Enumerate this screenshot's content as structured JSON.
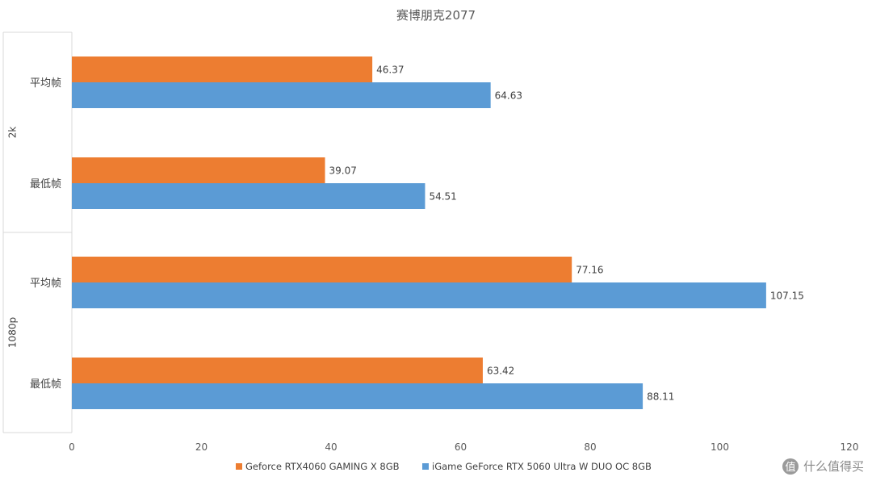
{
  "chart_data": {
    "type": "bar",
    "orientation": "horizontal",
    "title": "赛博朋克2077",
    "groups": [
      {
        "label": "2k",
        "categories": [
          "平均帧",
          "最低帧"
        ]
      },
      {
        "label": "1080p",
        "categories": [
          "平均帧",
          "最低帧"
        ]
      }
    ],
    "series": [
      {
        "name": "Geforce RTX4060 GAMING X 8GB",
        "color": "#ED7D31",
        "values": [
          46.37,
          39.07,
          77.16,
          63.42
        ]
      },
      {
        "name": "iGame GeForce RTX 5060 Ultra W DUO OC 8GB",
        "color": "#5B9BD5",
        "values": [
          64.63,
          54.51,
          107.15,
          88.11
        ]
      }
    ],
    "x_ticks": [
      "0",
      "20",
      "40",
      "60",
      "80",
      "100",
      "120"
    ],
    "xlim": [
      0,
      120
    ],
    "legend_position": "bottom",
    "grid": false
  },
  "watermark": {
    "icon": "值",
    "text": "什么值得买"
  }
}
